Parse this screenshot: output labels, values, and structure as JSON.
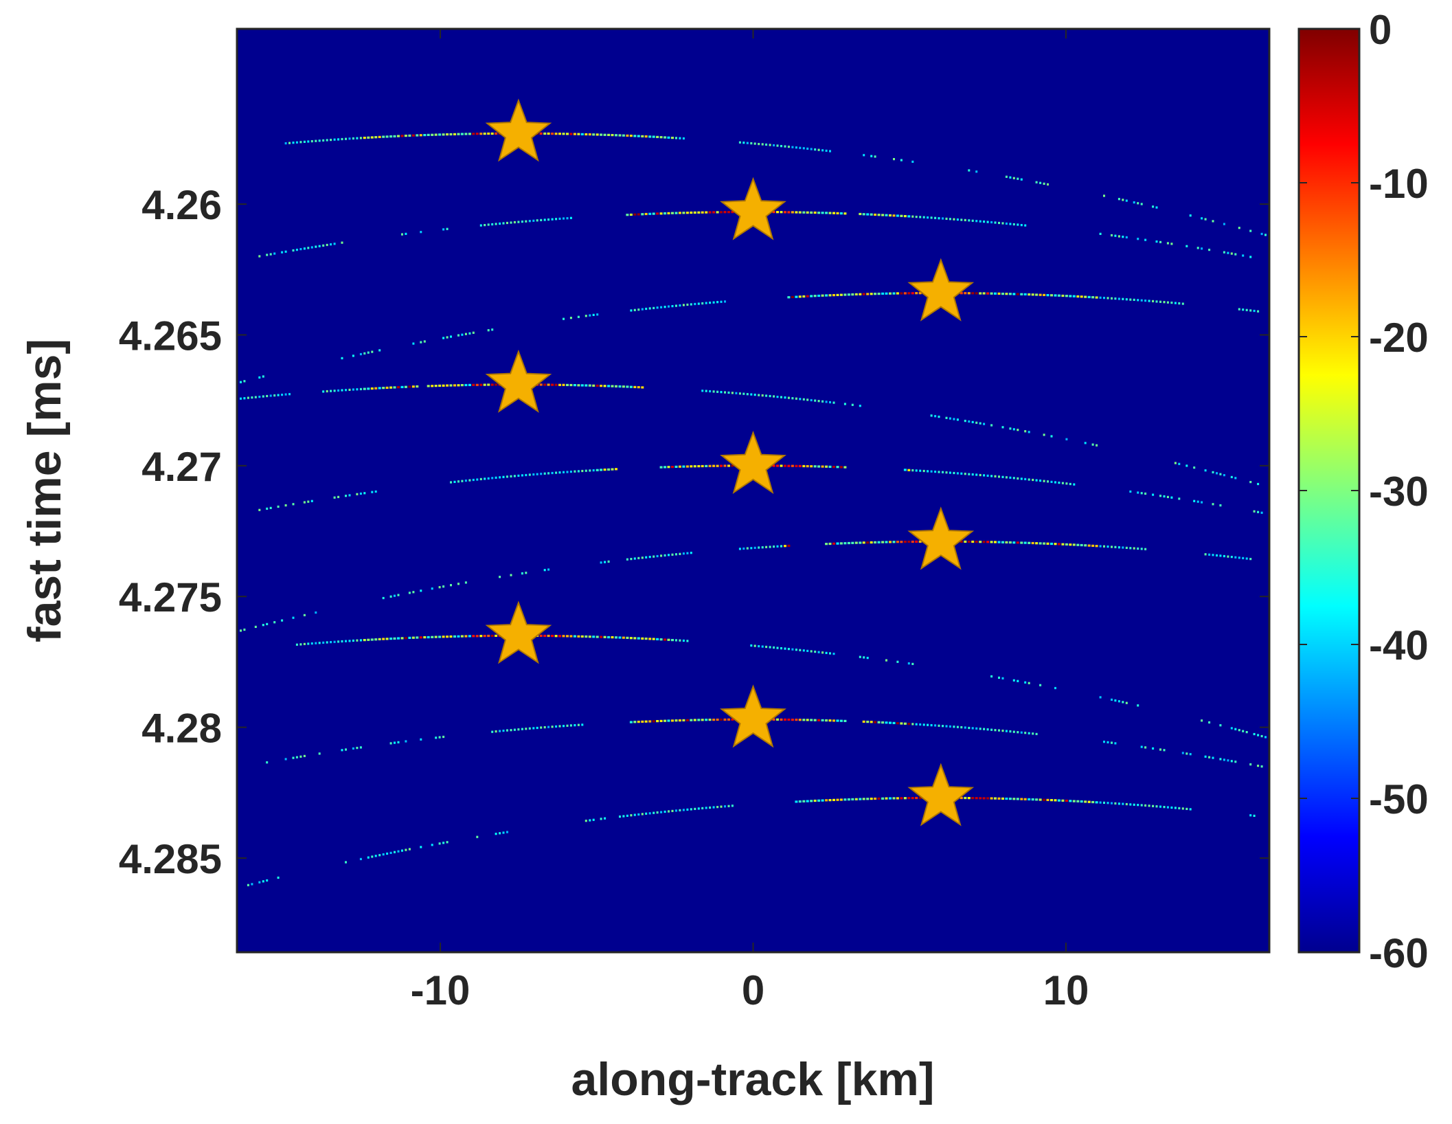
{
  "chart_data": {
    "type": "heatmap",
    "title": "",
    "xlabel": "along-track [km]",
    "ylabel": "fast time [ms]",
    "xlim": [
      -16.5,
      16.5
    ],
    "ylim": [
      4.2886,
      4.2533
    ],
    "y_direction": "down",
    "x_ticks": [
      -10,
      0,
      10
    ],
    "x_tick_labels": [
      "-10",
      "0",
      "10"
    ],
    "y_ticks": [
      4.26,
      4.265,
      4.27,
      4.275,
      4.28,
      4.285
    ],
    "y_tick_labels": [
      "4.26",
      "4.265",
      "4.27",
      "4.275",
      "4.28",
      "4.285"
    ],
    "colorbar": {
      "colormap": "jet",
      "clim": [
        -60,
        0
      ],
      "ticks": [
        0,
        -10,
        -20,
        -30,
        -40,
        -50,
        -60
      ],
      "tick_labels": [
        "0",
        "-10",
        "-20",
        "-30",
        "-40",
        "-50",
        "-60"
      ]
    },
    "background_value": -60,
    "grid": false,
    "targets": [
      {
        "x": -7.5,
        "y": 4.2573
      },
      {
        "x": 0.0,
        "y": 4.2603
      },
      {
        "x": 6.0,
        "y": 4.2634
      },
      {
        "x": -7.5,
        "y": 4.2669
      },
      {
        "x": 0.0,
        "y": 4.27
      },
      {
        "x": 6.0,
        "y": 4.2729
      },
      {
        "x": -7.5,
        "y": 4.2765
      },
      {
        "x": 0.0,
        "y": 4.2797
      },
      {
        "x": 6.0,
        "y": 4.2827
      }
    ],
    "target_marker": {
      "shape": "star",
      "color": "#f5b000",
      "edge_color": "#b07800"
    },
    "range_curvature_ms_per_km2": 6.8e-06
  }
}
